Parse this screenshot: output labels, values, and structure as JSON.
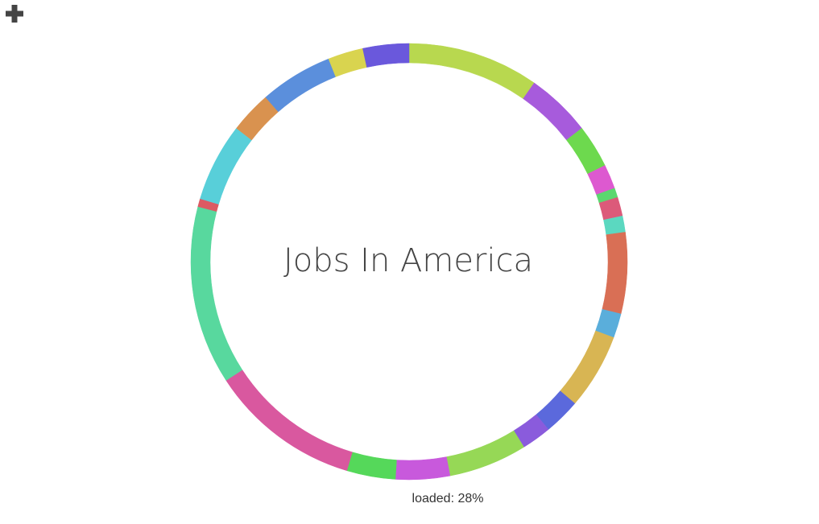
{
  "chart_data": {
    "type": "donut",
    "title": "Jobs In America",
    "status": "loaded: 28%",
    "values": [
      9.7,
      4.8,
      3.2,
      1.8,
      0.7,
      1.4,
      1.2,
      6,
      1.8,
      5.6,
      2.7,
      2.2,
      5.8,
      4,
      3.6,
      11.2,
      13.2,
      0.6,
      5.8,
      3.1,
      5.4,
      2.6,
      3.4
    ],
    "colors": [
      "#b8d84f",
      "#a75bdc",
      "#6dd94e",
      "#dd59d0",
      "#5bd86f",
      "#dc5a7a",
      "#5bd8c0",
      "#d96f55",
      "#5aaedb",
      "#d8b553",
      "#5b69dc",
      "#8a5bdc",
      "#96d856",
      "#c859dc",
      "#55d85a",
      "#d9589f",
      "#58d89e",
      "#dc5a63",
      "#58cfd9",
      "#d9924f",
      "#5b8fdc",
      "#d9d44f",
      "#6a58dc"
    ]
  }
}
